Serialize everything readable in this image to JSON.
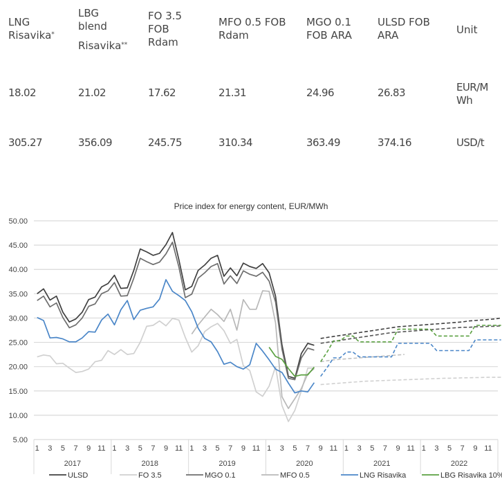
{
  "table": {
    "headers": [
      {
        "lines": [
          "LNG",
          "Risavika"
        ],
        "sup": "*"
      },
      {
        "lines": [
          "LBG",
          "blend",
          "Risavika"
        ],
        "sup": "**"
      },
      {
        "lines": [
          "FO 3.5",
          "FOB",
          "Rdam"
        ],
        "sup": ""
      },
      {
        "lines": [
          "MFO 0.5 FOB",
          "Rdam"
        ],
        "sup": ""
      },
      {
        "lines": [
          "MGO 0.1",
          "FOB ARA"
        ],
        "sup": ""
      },
      {
        "lines": [
          "ULSD FOB",
          "ARA"
        ],
        "sup": ""
      },
      {
        "lines": [
          "Unit"
        ],
        "sup": ""
      }
    ],
    "rows": [
      [
        "18.02",
        "21.02",
        "17.62",
        "21.31",
        "24.96",
        "26.83",
        "EUR/M|Wh"
      ],
      [
        "305.27",
        "356.09",
        "245.75",
        "310.34",
        "363.49",
        "374.16",
        "USD/t"
      ]
    ]
  },
  "chart_data": {
    "type": "line",
    "title": "Price index for energy content, EUR/MWh",
    "xlabel": "",
    "ylabel": "",
    "ylim": [
      5,
      50
    ],
    "yticks": [
      "5.00",
      "10.00",
      "15.00",
      "20.00",
      "25.00",
      "30.00",
      "35.00",
      "40.00",
      "45.00",
      "50.00"
    ],
    "years": [
      "2017",
      "2018",
      "2019",
      "2020",
      "2021",
      "2022"
    ],
    "month_tick_labels": [
      "1",
      "3",
      "5",
      "7",
      "9",
      "11"
    ],
    "grid": true,
    "legend_position": "bottom",
    "series": [
      {
        "name": "ULSD",
        "color": "#404040",
        "dash": false,
        "start": 0,
        "values": [
          35.0,
          36.0,
          33.7,
          34.5,
          31.2,
          29.2,
          29.8,
          31.2,
          33.8,
          34.3,
          36.4,
          37.1,
          38.8,
          36.1,
          36.2,
          39.8,
          44.2,
          43.6,
          42.9,
          43.3,
          45.1,
          47.6,
          42.0,
          35.8,
          36.5,
          39.8,
          40.9,
          42.3,
          42.9,
          38.6,
          40.3,
          38.7,
          41.3,
          40.6,
          40.2,
          41.2,
          39.3,
          34.5,
          24.5,
          18.0,
          17.6,
          22.7,
          24.8,
          24.4
        ]
      },
      {
        "name": "FO 3.5",
        "color": "#d0d0d0",
        "dash": false,
        "start": 0,
        "values": [
          22.0,
          22.4,
          22.2,
          20.6,
          20.7,
          19.7,
          18.8,
          19.0,
          19.5,
          21.0,
          21.3,
          23.3,
          22.5,
          23.5,
          22.5,
          22.7,
          25.0,
          28.3,
          28.5,
          29.4,
          28.4,
          29.9,
          29.6,
          26.0,
          23.0,
          24.3,
          27.2,
          28.2,
          28.9,
          27.4,
          24.8,
          25.6,
          20.2,
          19.2,
          14.8,
          13.9,
          16.0,
          20.0,
          12.0,
          8.7,
          11.0,
          15.0,
          19.7,
          19.7
        ]
      },
      {
        "name": "MGO 0.1",
        "color": "#6e6e6e",
        "dash": false,
        "start": 0,
        "values": [
          33.6,
          34.5,
          32.3,
          33.1,
          30.1,
          28.0,
          28.6,
          30.0,
          32.4,
          32.9,
          35.0,
          35.6,
          37.3,
          34.5,
          34.6,
          38.2,
          42.3,
          41.6,
          41.0,
          41.5,
          43.2,
          45.6,
          40.5,
          34.2,
          34.9,
          38.2,
          39.3,
          40.6,
          41.2,
          37.0,
          38.7,
          37.1,
          39.7,
          39.0,
          38.6,
          39.4,
          37.6,
          33.3,
          23.6,
          17.6,
          17.3,
          21.8,
          23.8,
          23.4
        ]
      },
      {
        "name": "MFO 0.5",
        "color": "#b8b8b8",
        "dash": false,
        "start": 24,
        "values": [
          26.7,
          28.6,
          30.2,
          31.8,
          30.7,
          29.3,
          31.8,
          27.5,
          33.8,
          31.8,
          31.8,
          35.6,
          35.5,
          29.0,
          13.8,
          11.4,
          13.4,
          15.5,
          18.5,
          19.6
        ]
      },
      {
        "name": "LNG Risavika",
        "color": "#4a86c8",
        "dash": false,
        "start": 0,
        "values": [
          30.1,
          29.5,
          25.9,
          26.0,
          25.7,
          25.1,
          25.1,
          25.9,
          27.2,
          27.1,
          29.6,
          30.8,
          28.6,
          31.7,
          33.6,
          29.7,
          31.6,
          32.0,
          32.3,
          33.9,
          37.9,
          35.5,
          34.6,
          33.6,
          31.3,
          27.9,
          25.8,
          25.1,
          23.1,
          20.5,
          20.9,
          20.0,
          19.5,
          20.4,
          24.8,
          23.2,
          21.4,
          19.5,
          18.8,
          16.6,
          14.6,
          15.0,
          14.8,
          16.7
        ]
      },
      {
        "name": "LBG Risavika 10%",
        "color": "#5aa040",
        "dash": false,
        "start": 36,
        "values": [
          24.0,
          22.1,
          21.5,
          19.6,
          18.0,
          18.3,
          18.3,
          19.9
        ]
      },
      {
        "name": "ULSD forward",
        "color": "#404040",
        "dash": true,
        "start": 44,
        "values": [
          25.8,
          26.0,
          26.2,
          26.4,
          26.6,
          26.8,
          27.0,
          27.2,
          27.4,
          27.6,
          27.8,
          28.0,
          28.2,
          28.3,
          28.4,
          28.5,
          28.6,
          28.7,
          28.8,
          28.9,
          29.0,
          29.1,
          29.2,
          29.4,
          29.5,
          29.6,
          29.7,
          29.8,
          30.0
        ]
      },
      {
        "name": "MGO 0.1 forward",
        "color": "#555555",
        "dash": true,
        "start": 44,
        "values": [
          24.8,
          25.0,
          25.2,
          25.4,
          25.6,
          25.8,
          26.0,
          26.2,
          26.4,
          26.6,
          26.8,
          27.0,
          27.1,
          27.2,
          27.3,
          27.4,
          27.5,
          27.6,
          27.7,
          27.8,
          27.9,
          28.0,
          28.1,
          28.1,
          28.2,
          28.2,
          28.3,
          28.3,
          28.4
        ]
      },
      {
        "name": "MFO 0.5 forward",
        "color": "#c0c0c0",
        "dash": true,
        "start": 44,
        "values": [
          21.0,
          21.2,
          21.4,
          21.5,
          21.6,
          21.7,
          21.8,
          21.9,
          22.0,
          22.1,
          22.2,
          22.3,
          22.4,
          22.5
        ]
      },
      {
        "name": "FO 3.5 forward",
        "color": "#d0d0d0",
        "dash": true,
        "start": 44,
        "values": [
          16.3,
          16.4,
          16.5,
          16.6,
          16.7,
          16.8,
          16.9,
          17.0,
          17.05,
          17.1,
          17.15,
          17.2,
          17.25,
          17.3,
          17.35,
          17.4,
          17.45,
          17.5,
          17.55,
          17.6,
          17.62,
          17.65,
          17.7,
          17.72,
          17.75,
          17.78,
          17.8,
          17.8,
          17.8
        ]
      },
      {
        "name": "LNG Risavika forward",
        "color": "#4a86c8",
        "dash": true,
        "start": 44,
        "values": [
          18.0,
          19.8,
          21.8,
          21.8,
          23.0,
          23.0,
          22.0,
          22.0,
          22.0,
          22.0,
          22.0,
          22.0,
          24.8,
          24.8,
          24.8,
          24.8,
          24.8,
          24.8,
          23.3,
          23.3,
          23.3,
          23.3,
          23.3,
          23.3,
          25.5,
          25.5,
          25.5,
          25.5,
          25.5
        ]
      },
      {
        "name": "LBG Risavika 10% forward",
        "color": "#5aa040",
        "dash": true,
        "start": 44,
        "values": [
          21.0,
          23.0,
          25.3,
          25.3,
          26.3,
          26.3,
          25.1,
          25.1,
          25.1,
          25.1,
          25.1,
          25.1,
          27.7,
          27.7,
          27.7,
          27.7,
          27.7,
          27.7,
          26.3,
          26.3,
          26.3,
          26.3,
          26.3,
          26.3,
          28.5,
          28.5,
          28.5,
          28.5,
          28.5
        ]
      }
    ],
    "legend": [
      "ULSD",
      "FO 3.5",
      "MGO 0.1",
      "MFO 0.5",
      "LNG Risavika",
      "LBG Risavika 10%"
    ]
  }
}
